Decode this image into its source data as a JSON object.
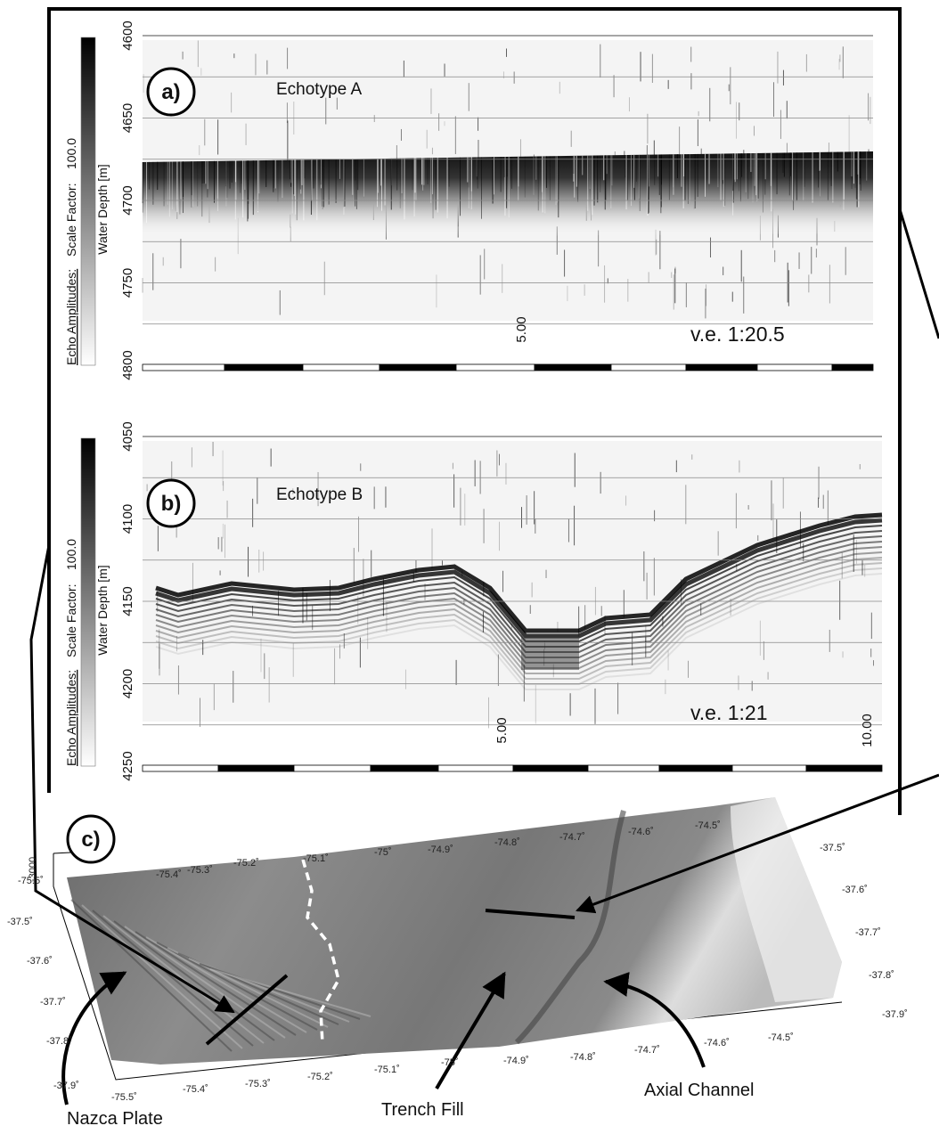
{
  "panels": [
    {
      "label": "a)",
      "title": "Echotype A",
      "vertical_exaggeration": "v.e. 1:20.5",
      "colorbar": {
        "label": "Echo Amplitudes:",
        "scale_label": "Scale Factor:",
        "scale_value": "100.0"
      },
      "y_axis_label": "Water Depth [m]",
      "depth_ticks": [
        4600,
        4650,
        4700,
        4750,
        4800
      ],
      "distance_labels": [
        "5.00"
      ]
    },
    {
      "label": "b)",
      "title": "Echotype B",
      "vertical_exaggeration": "v.e. 1:21",
      "colorbar": {
        "label": "Echo Amplitudes:",
        "scale_label": "Scale Factor:",
        "scale_value": "100.0"
      },
      "y_axis_label": "Water Depth [m]",
      "depth_ticks": [
        4050,
        4100,
        4150,
        4200,
        4250
      ],
      "distance_labels": [
        "5.00",
        "10.00"
      ]
    }
  ],
  "map": {
    "label": "c)",
    "depth_label": "-3000",
    "lon_top": [
      "-75.5˚",
      "-75.4˚",
      "-75.3˚",
      "-75.2˚",
      "-75.1˚",
      "-75˚",
      "-74.9˚",
      "-74.8˚",
      "-74.7˚",
      "-74.6˚",
      "-74.5˚"
    ],
    "lon_bottom": [
      "-75.5˚",
      "-75.4˚",
      "-75.3˚",
      "-75.2˚",
      "-75.1˚",
      "-75˚",
      "-74.9˚",
      "-74.8˚",
      "-74.7˚",
      "-74.6˚",
      "-74.5˚"
    ],
    "lat_left": [
      "-37.5˚",
      "-37.6˚",
      "-37.7˚",
      "-37.8˚",
      "-37.9˚"
    ],
    "lat_right": [
      "-37.5˚",
      "-37.6˚",
      "-37.7˚",
      "-37.8˚",
      "-37.9˚"
    ],
    "annotations": [
      "Nazca Plate",
      "Trench Fill",
      "Axial Channel"
    ]
  }
}
